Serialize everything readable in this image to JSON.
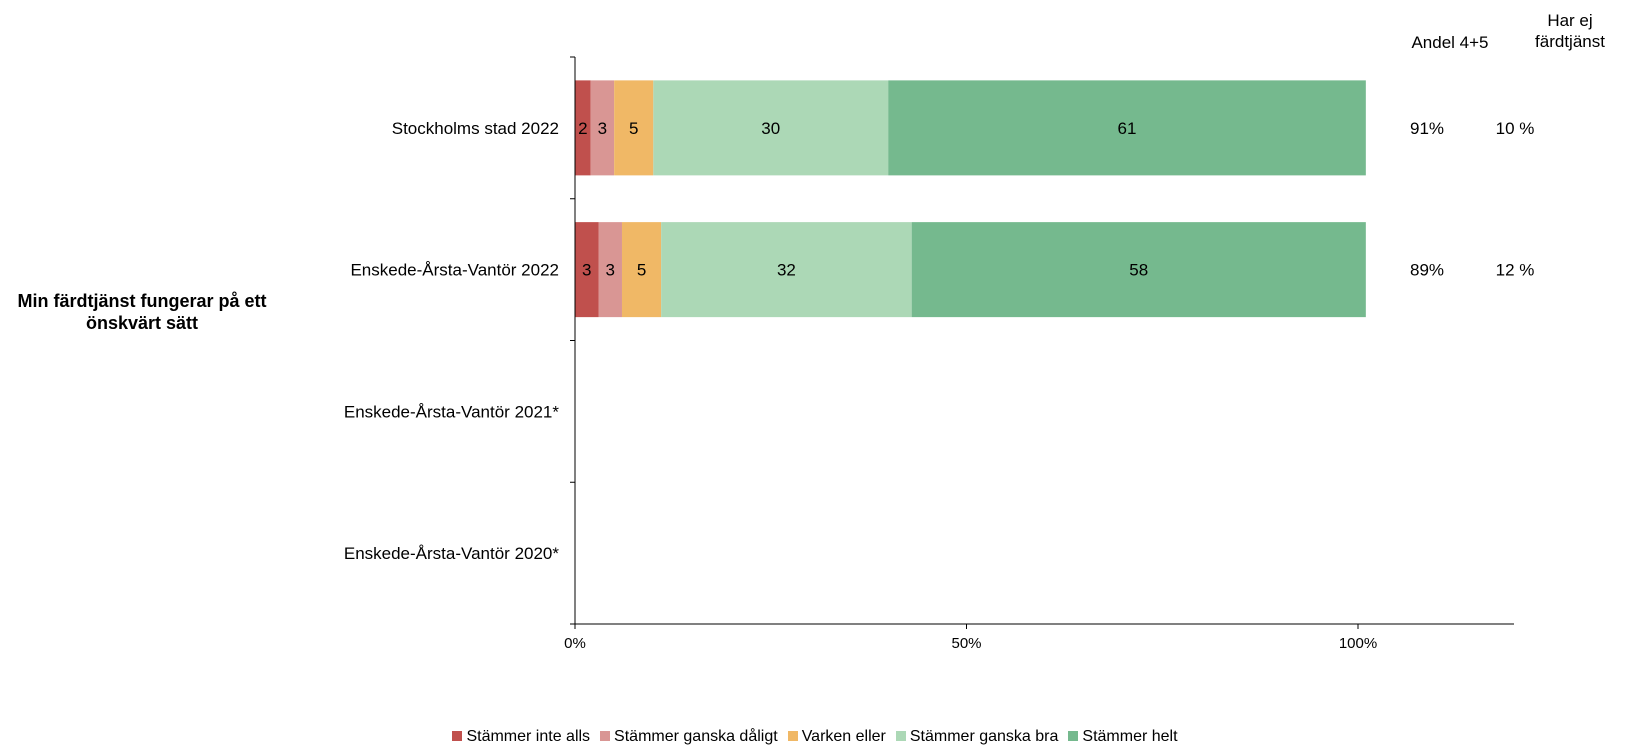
{
  "chart_data": {
    "type": "bar",
    "orientation": "horizontal",
    "stacked": true,
    "side_title": "Min färdtjänst fungerar på ett önskvärt sätt",
    "categories": [
      "Stockholms stad 2022",
      "Enskede-Årsta-Vantör 2022",
      "Enskede-Årsta-Vantör 2021*",
      "Enskede-Årsta-Vantör 2020*"
    ],
    "series": [
      {
        "name": "Stämmer inte alls",
        "color": "#c0504d",
        "values": [
          2,
          3,
          null,
          null
        ]
      },
      {
        "name": "Stämmer ganska dåligt",
        "color": "#d99694",
        "values": [
          3,
          3,
          null,
          null
        ]
      },
      {
        "name": "Varken eller",
        "color": "#f0b866",
        "values": [
          5,
          5,
          null,
          null
        ]
      },
      {
        "name": "Stämmer ganska bra",
        "color": "#acd8b6",
        "values": [
          30,
          32,
          null,
          null
        ]
      },
      {
        "name": "Stämmer helt",
        "color": "#75b98e",
        "values": [
          61,
          58,
          null,
          null
        ]
      }
    ],
    "x_ticks": [
      "0%",
      "50%",
      "100%"
    ],
    "xlim": [
      0,
      120
    ],
    "extra_columns": [
      {
        "header": "Andel 4+5",
        "values": [
          "91%",
          "89%",
          "",
          ""
        ]
      },
      {
        "header": "Har ej färdtjänst",
        "header_lines": [
          "Har ej",
          "färdtjänst"
        ],
        "values": [
          "10 %",
          "12 %",
          "",
          ""
        ]
      }
    ],
    "legend_position": "bottom",
    "grid": false
  }
}
